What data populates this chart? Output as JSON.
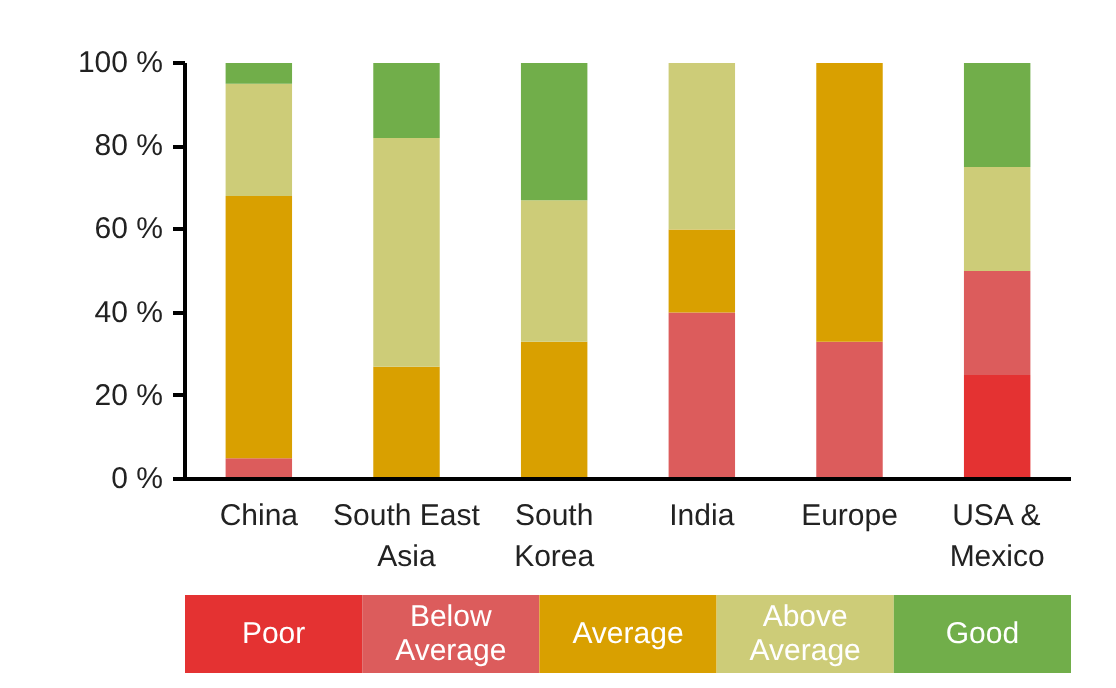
{
  "chart_data": {
    "type": "bar",
    "stacked": true,
    "categories": [
      "China",
      "South East\nAsia",
      "South\nKorea",
      "India",
      "Europe",
      "USA &\nMexico"
    ],
    "series": [
      {
        "name": "Poor",
        "color": "#e43232",
        "values": [
          0,
          0,
          0,
          0,
          0,
          25
        ]
      },
      {
        "name": "Below\nAverage",
        "color": "#dc5c5c",
        "values": [
          5,
          0,
          0,
          40,
          33,
          25
        ]
      },
      {
        "name": "Average",
        "color": "#d9a000",
        "values": [
          63,
          27,
          33,
          20,
          67,
          0
        ]
      },
      {
        "name": "Above\nAverage",
        "color": "#cdcc78",
        "values": [
          27,
          55,
          34,
          40,
          0,
          25
        ]
      },
      {
        "name": "Good",
        "color": "#71ae4a",
        "values": [
          5,
          18,
          33,
          0,
          0,
          25
        ]
      }
    ],
    "ylim": [
      0,
      100
    ],
    "yticks": [
      {
        "value": 0,
        "label": "0 %"
      },
      {
        "value": 20,
        "label": "20 %"
      },
      {
        "value": 40,
        "label": "40 %"
      },
      {
        "value": 60,
        "label": "60 %"
      },
      {
        "value": 80,
        "label": "80 %"
      },
      {
        "value": 100,
        "label": "100 %"
      }
    ],
    "grid": false,
    "legend": "bottom"
  }
}
